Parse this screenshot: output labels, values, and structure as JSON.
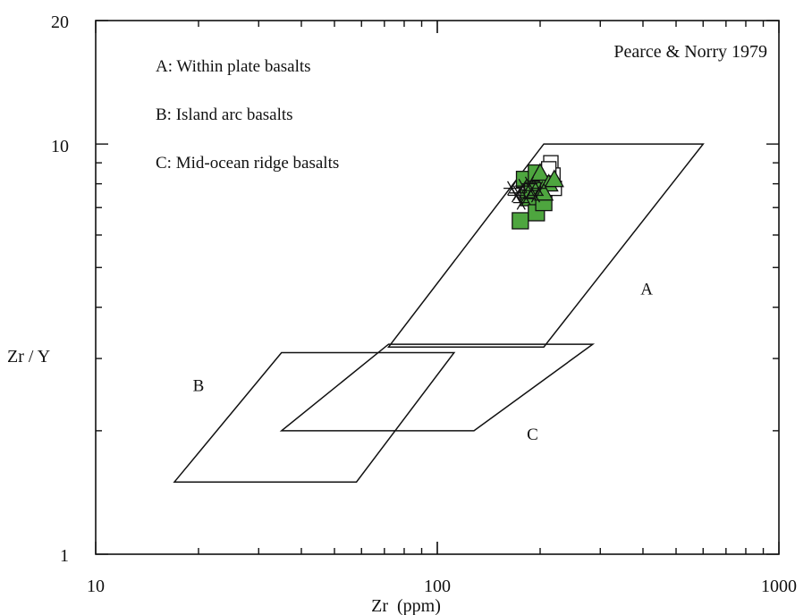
{
  "chart_data": {
    "type": "scatter",
    "title": "",
    "reference": "Pearce & Norry 1979",
    "xlabel": "Zr  (ppm)",
    "ylabel": "Zr / Y",
    "x_scale": "log",
    "y_scale": "log",
    "xlim": [
      10,
      1000
    ],
    "ylim": [
      1,
      20
    ],
    "x_ticks": [
      {
        "value": 10,
        "label": "10"
      },
      {
        "value": 100,
        "label": "100"
      },
      {
        "value": 1000,
        "label": "1000"
      }
    ],
    "y_ticks": [
      {
        "value": 1,
        "label": "1"
      },
      {
        "value": 10,
        "label": "10"
      },
      {
        "value": 20,
        "label": "20"
      }
    ],
    "legend_text": [
      "A: Within plate basalts",
      "B: Island arc basalts",
      "C: Mid-ocean ridge basalts"
    ],
    "regions": [
      {
        "label": "A",
        "label_pos": [
          410,
          4.3
        ],
        "polygon": [
          [
            205,
            10
          ],
          [
            600,
            10
          ],
          [
            205,
            3.2
          ],
          [
            72,
            3.2
          ]
        ]
      },
      {
        "label": "B",
        "label_pos": [
          20,
          2.5
        ],
        "polygon": [
          [
            17,
            1.5
          ],
          [
            58,
            1.5
          ],
          [
            112,
            3.1
          ],
          [
            35,
            3.1
          ]
        ]
      },
      {
        "label": "C",
        "label_pos": [
          190,
          1.9
        ],
        "polygon": [
          [
            35,
            2.0
          ],
          [
            128,
            2.0
          ],
          [
            285,
            3.25
          ],
          [
            72,
            3.25
          ]
        ]
      }
    ],
    "series": [
      {
        "marker": "square-green",
        "points": [
          [
            175,
            6.5
          ],
          [
            185,
            7.4
          ],
          [
            195,
            6.8
          ],
          [
            205,
            7.2
          ],
          [
            200,
            8.0
          ],
          [
            215,
            8.3
          ],
          [
            180,
            8.2
          ],
          [
            195,
            8.5
          ],
          [
            210,
            7.9
          ],
          [
            190,
            7.7
          ]
        ]
      },
      {
        "marker": "square-open",
        "points": [
          [
            215,
            9.0
          ],
          [
            218,
            8.4
          ],
          [
            220,
            7.8
          ],
          [
            212,
            8.7
          ]
        ]
      },
      {
        "marker": "triangle-green",
        "points": [
          [
            200,
            8.5
          ],
          [
            212,
            8.0
          ],
          [
            220,
            8.2
          ],
          [
            205,
            7.6
          ]
        ]
      },
      {
        "marker": "star",
        "points": [
          [
            165,
            7.8
          ],
          [
            172,
            7.6
          ],
          [
            178,
            7.9
          ],
          [
            182,
            7.4
          ],
          [
            188,
            7.7
          ],
          [
            194,
            7.5
          ],
          [
            176,
            7.2
          ],
          [
            186,
            8.0
          ],
          [
            198,
            7.8
          ],
          [
            170,
            7.5
          ]
        ]
      }
    ],
    "colors": {
      "green_fill": "#4ea63f",
      "stroke": "#111111"
    }
  }
}
